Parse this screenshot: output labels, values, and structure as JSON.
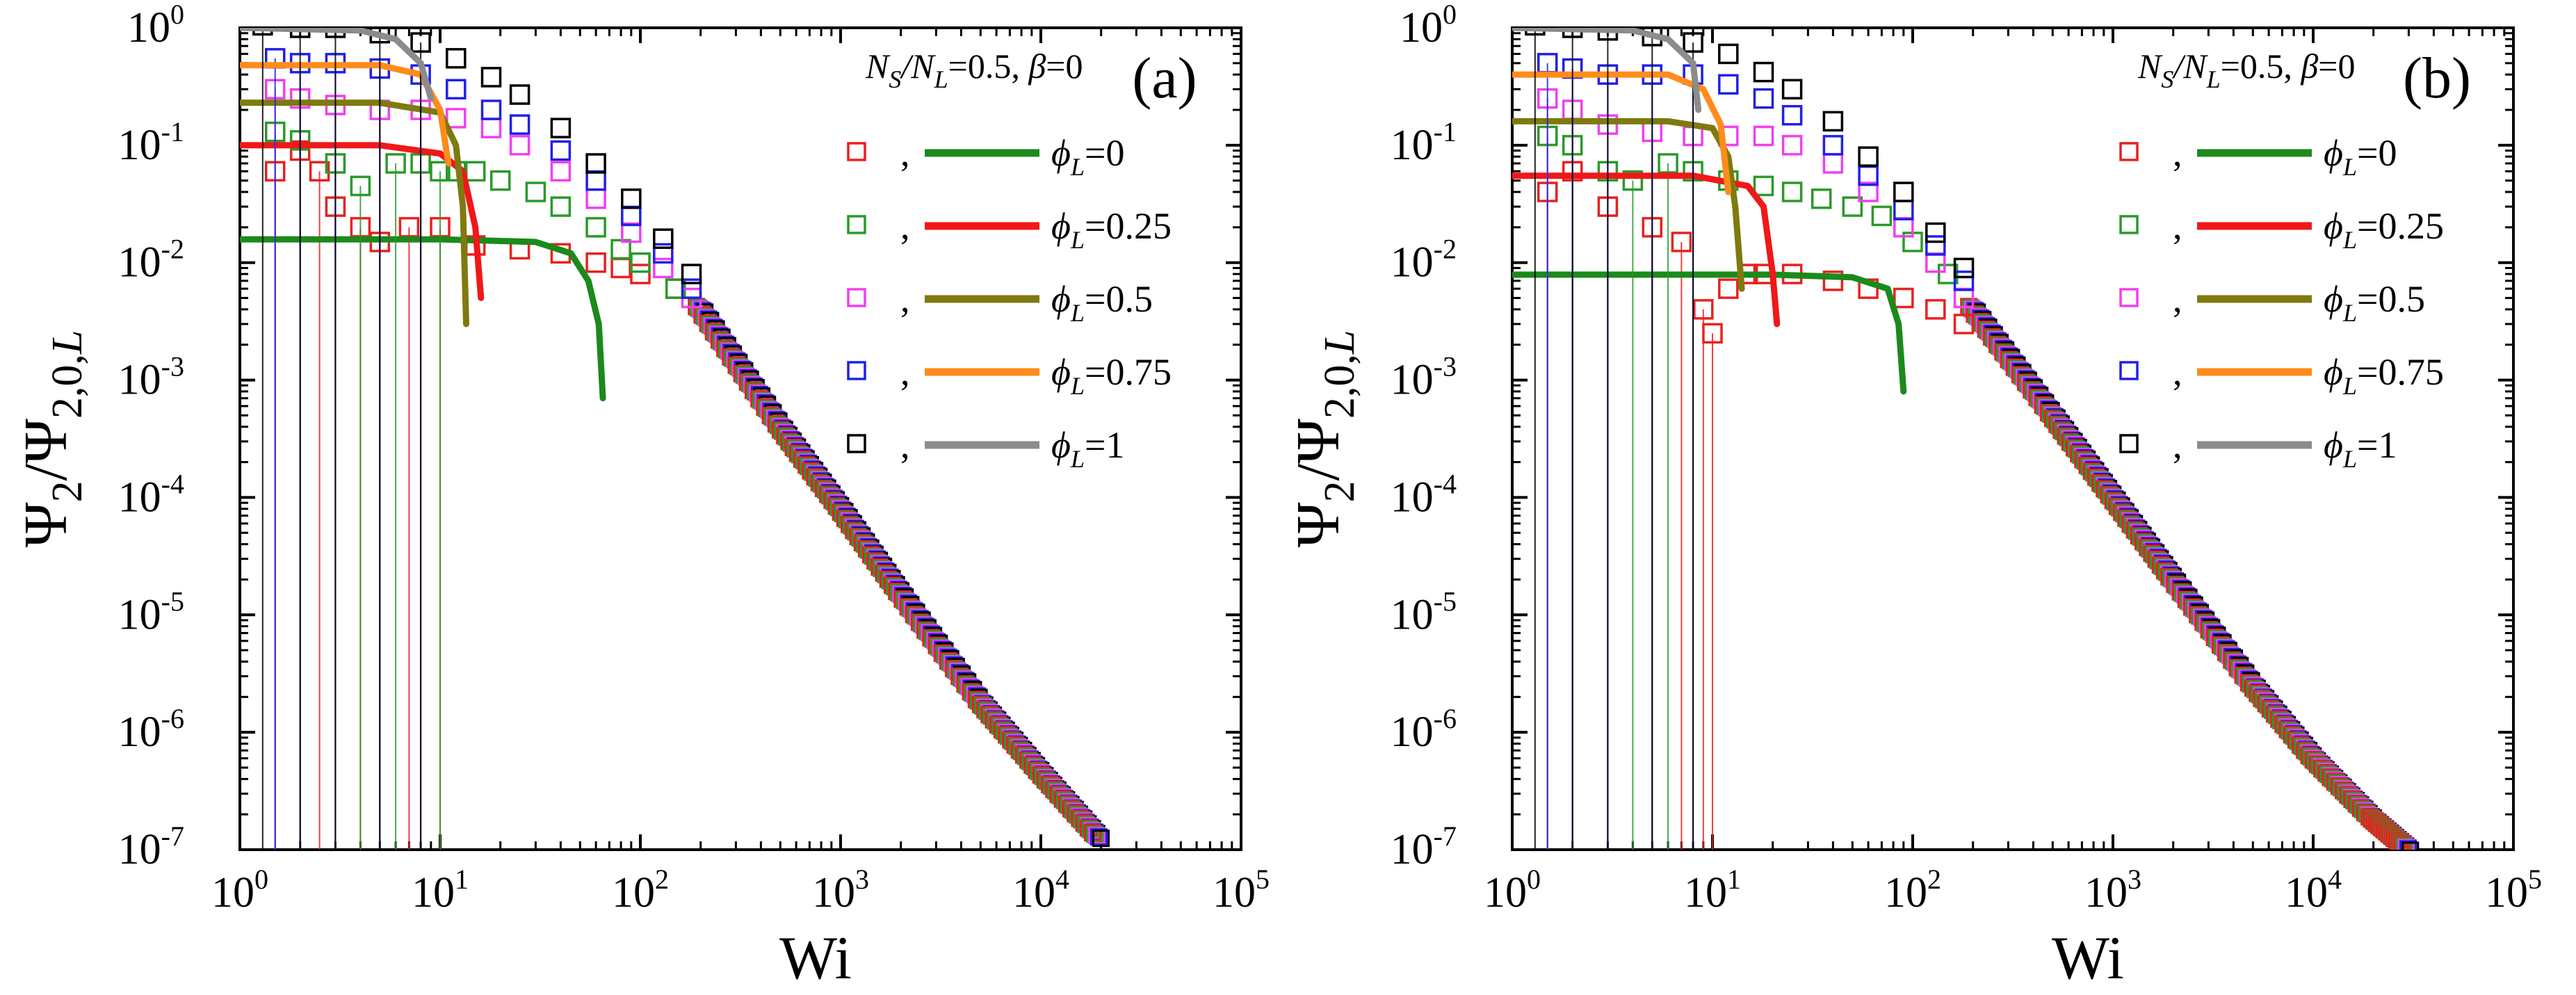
{
  "chart_data": [
    {
      "panel": "(a)",
      "type": "scatter",
      "xlabel": "Wi",
      "ylabel": "Ψ2/Ψ2,0,L",
      "ylabel_parts": {
        "main": "Ψ",
        "sub1": "2",
        "sep": "/Ψ",
        "sub2": "2,0,",
        "sub2_italic": "L"
      },
      "xscale": "log",
      "yscale": "log",
      "xlim": [
        1,
        100000
      ],
      "ylim": [
        1e-07,
        1
      ],
      "x_ticks": [
        "10^0",
        "10^1",
        "10^2",
        "10^3",
        "10^4",
        "10^5"
      ],
      "y_ticks": [
        "10^-7",
        "10^-6",
        "10^-5",
        "10^-4",
        "10^-3",
        "10^-2",
        "10^-1",
        "10^0"
      ],
      "annotation": {
        "params": "NS/NL=0.5, β=0",
        "params_parts": [
          "N",
          "S",
          "/N",
          "L",
          "=0.5, ",
          "β",
          "=0"
        ]
      },
      "legend_position": "top-right",
      "legend": [
        {
          "marker_color": "#e8211e",
          "line_color": "#1b8a1b",
          "label": "ϕL=0",
          "symbol": "ϕ",
          "sub": "L",
          "value": "=0"
        },
        {
          "marker_color": "#2a9a2a",
          "line_color": "#f01818",
          "label": "ϕL=0.25",
          "symbol": "ϕ",
          "sub": "L",
          "value": "=0.25"
        },
        {
          "marker_color": "#f040f0",
          "line_color": "#7e7a10",
          "label": "ϕL=0.5",
          "symbol": "ϕ",
          "sub": "L",
          "value": "=0.5"
        },
        {
          "marker_color": "#2020e8",
          "line_color": "#ff8c1a",
          "label": "ϕL=0.75",
          "symbol": "ϕ",
          "sub": "L",
          "value": "=0.75"
        },
        {
          "marker_color": "#000000",
          "line_color": "#8c8c8c",
          "label": "ϕL=1",
          "symbol": "ϕ",
          "sub": "L",
          "value": "=1"
        }
      ],
      "series": [
        {
          "name": "ϕL=0",
          "marker_color": "#e8211e",
          "line_color": "#1b8a1b",
          "points": [
            [
              1.5,
              0.06
            ],
            [
              2,
              0.09
            ],
            [
              2.5,
              0.06
            ],
            [
              3,
              0.03
            ],
            [
              4,
              0.02
            ],
            [
              5,
              0.015
            ],
            [
              7,
              0.02
            ],
            [
              10,
              0.02
            ],
            [
              15,
              0.014
            ],
            [
              25,
              0.013
            ],
            [
              40,
              0.012
            ],
            [
              60,
              0.01
            ],
            [
              80,
              0.009
            ],
            [
              100,
              0.008
            ],
            [
              150,
              0.006
            ]
          ],
          "model_curve": [
            [
              1,
              0.0158
            ],
            [
              10,
              0.0158
            ],
            [
              30,
              0.015
            ],
            [
              45,
              0.012
            ],
            [
              55,
              0.007
            ],
            [
              62,
              0.003
            ],
            [
              65,
              0.0007
            ]
          ]
        },
        {
          "name": "ϕL=0.25",
          "marker_color": "#2a9a2a",
          "line_color": "#f01818",
          "points": [
            [
              1.5,
              0.13
            ],
            [
              2,
              0.11
            ],
            [
              3,
              0.07
            ],
            [
              4,
              0.045
            ],
            [
              6,
              0.07
            ],
            [
              8,
              0.07
            ],
            [
              10,
              0.06
            ],
            [
              12,
              0.06
            ],
            [
              15,
              0.06
            ],
            [
              20,
              0.05
            ],
            [
              30,
              0.04
            ],
            [
              40,
              0.03
            ],
            [
              60,
              0.02
            ],
            [
              80,
              0.013
            ],
            [
              100,
              0.01
            ],
            [
              150,
              0.006
            ]
          ],
          "model_curve": [
            [
              1,
              0.1
            ],
            [
              5,
              0.1
            ],
            [
              10,
              0.085
            ],
            [
              13,
              0.06
            ],
            [
              15,
              0.02
            ],
            [
              16,
              0.005
            ]
          ]
        },
        {
          "name": "ϕL=0.5",
          "marker_color": "#f040f0",
          "line_color": "#7e7a10",
          "points": [
            [
              1.5,
              0.3
            ],
            [
              2,
              0.25
            ],
            [
              3,
              0.22
            ],
            [
              5,
              0.2
            ],
            [
              8,
              0.2
            ],
            [
              12,
              0.17
            ],
            [
              18,
              0.14
            ],
            [
              25,
              0.1
            ],
            [
              40,
              0.06
            ],
            [
              60,
              0.035
            ],
            [
              90,
              0.018
            ],
            [
              130,
              0.009
            ],
            [
              180,
              0.005
            ]
          ],
          "model_curve": [
            [
              1,
              0.23
            ],
            [
              5,
              0.23
            ],
            [
              10,
              0.19
            ],
            [
              12,
              0.1
            ],
            [
              13,
              0.03
            ],
            [
              13.5,
              0.003
            ]
          ]
        },
        {
          "name": "ϕL=0.75",
          "marker_color": "#2020e8",
          "line_color": "#ff8c1a",
          "points": [
            [
              1.5,
              0.55
            ],
            [
              2,
              0.5
            ],
            [
              3,
              0.5
            ],
            [
              5,
              0.45
            ],
            [
              8,
              0.4
            ],
            [
              12,
              0.3
            ],
            [
              18,
              0.2
            ],
            [
              25,
              0.15
            ],
            [
              40,
              0.09
            ],
            [
              60,
              0.05
            ],
            [
              90,
              0.025
            ],
            [
              130,
              0.012
            ],
            [
              180,
              0.006
            ]
          ],
          "model_curve": [
            [
              1,
              0.48
            ],
            [
              5,
              0.48
            ],
            [
              8,
              0.4
            ],
            [
              10,
              0.2
            ],
            [
              11,
              0.07
            ]
          ]
        },
        {
          "name": "ϕL=1",
          "marker_color": "#000000",
          "line_color": "#8c8c8c",
          "points": [
            [
              1.3,
              1.05
            ],
            [
              2,
              1.0
            ],
            [
              3,
              1.0
            ],
            [
              5,
              0.9
            ],
            [
              8,
              0.75
            ],
            [
              12,
              0.55
            ],
            [
              18,
              0.38
            ],
            [
              25,
              0.27
            ],
            [
              40,
              0.14
            ],
            [
              60,
              0.07
            ],
            [
              90,
              0.035
            ],
            [
              130,
              0.016
            ],
            [
              180,
              0.008
            ]
          ],
          "model_curve": [
            [
              1,
              1.0
            ],
            [
              4,
              0.95
            ],
            [
              6,
              0.8
            ],
            [
              8,
              0.5
            ],
            [
              9,
              0.25
            ]
          ]
        }
      ],
      "collapse_curve": [
        [
          200,
          0.004
        ],
        [
          500,
          0.0004
        ],
        [
          1000,
          8e-05
        ],
        [
          2000,
          1.5e-05
        ],
        [
          5000,
          1.8e-06
        ],
        [
          10000,
          4.5e-07
        ],
        [
          20000,
          1.2e-07
        ]
      ]
    },
    {
      "panel": "(b)",
      "type": "scatter",
      "xlabel": "Wi",
      "ylabel": "Ψ2/Ψ2,0,L",
      "ylabel_parts": {
        "main": "Ψ",
        "sub1": "2",
        "sep": "/Ψ",
        "sub2": "2,0,",
        "sub2_italic": "L"
      },
      "xscale": "log",
      "yscale": "log",
      "xlim": [
        1,
        100000
      ],
      "ylim": [
        1e-07,
        1
      ],
      "x_ticks": [
        "10^0",
        "10^1",
        "10^2",
        "10^3",
        "10^4",
        "10^5"
      ],
      "y_ticks": [
        "10^-7",
        "10^-6",
        "10^-5",
        "10^-4",
        "10^-3",
        "10^-2",
        "10^-1",
        "10^0"
      ],
      "annotation": {
        "params": "NS/NL=0.5, β=0",
        "params_parts": [
          "N",
          "S",
          "/N",
          "L",
          "=0.5, ",
          "β",
          "=0"
        ]
      },
      "legend_position": "top-right",
      "legend": [
        {
          "marker_color": "#e8211e",
          "line_color": "#1b8a1b",
          "label": "ϕL=0",
          "symbol": "ϕ",
          "sub": "L",
          "value": "=0"
        },
        {
          "marker_color": "#2a9a2a",
          "line_color": "#f01818",
          "label": "ϕL=0.25",
          "symbol": "ϕ",
          "sub": "L",
          "value": "=0.25"
        },
        {
          "marker_color": "#f040f0",
          "line_color": "#7e7a10",
          "label": "ϕL=0.5",
          "symbol": "ϕ",
          "sub": "L",
          "value": "=0.5"
        },
        {
          "marker_color": "#2020e8",
          "line_color": "#ff8c1a",
          "label": "ϕL=0.75",
          "symbol": "ϕ",
          "sub": "L",
          "value": "=0.75"
        },
        {
          "marker_color": "#000000",
          "line_color": "#8c8c8c",
          "label": "ϕL=1",
          "symbol": "ϕ",
          "sub": "L",
          "value": "=1"
        }
      ],
      "series": [
        {
          "name": "ϕL=0",
          "marker_color": "#e8211e",
          "line_color": "#1b8a1b",
          "points": [
            [
              1.5,
              0.04
            ],
            [
              2,
              0.06
            ],
            [
              3,
              0.03
            ],
            [
              5,
              0.02
            ],
            [
              7,
              0.015
            ],
            [
              9,
              0.004
            ],
            [
              10,
              0.0025
            ],
            [
              12,
              0.006
            ],
            [
              15,
              0.008
            ],
            [
              18,
              0.008
            ],
            [
              25,
              0.008
            ],
            [
              40,
              0.007
            ],
            [
              60,
              0.006
            ],
            [
              90,
              0.005
            ],
            [
              130,
              0.004
            ],
            [
              180,
              0.003
            ]
          ],
          "model_curve": [
            [
              1,
              0.0079
            ],
            [
              20,
              0.0079
            ],
            [
              50,
              0.0075
            ],
            [
              75,
              0.006
            ],
            [
              85,
              0.003
            ],
            [
              90,
              0.0008
            ]
          ]
        },
        {
          "name": "ϕL=0.25",
          "marker_color": "#2a9a2a",
          "line_color": "#f01818",
          "points": [
            [
              1.5,
              0.12
            ],
            [
              2,
              0.1
            ],
            [
              3,
              0.06
            ],
            [
              4,
              0.05
            ],
            [
              6,
              0.07
            ],
            [
              8,
              0.06
            ],
            [
              12,
              0.05
            ],
            [
              18,
              0.045
            ],
            [
              25,
              0.04
            ],
            [
              35,
              0.035
            ],
            [
              50,
              0.03
            ],
            [
              70,
              0.025
            ],
            [
              100,
              0.015
            ],
            [
              150,
              0.008
            ]
          ],
          "model_curve": [
            [
              1,
              0.055
            ],
            [
              8,
              0.055
            ],
            [
              15,
              0.045
            ],
            [
              18,
              0.03
            ],
            [
              20,
              0.008
            ],
            [
              21,
              0.003
            ]
          ]
        },
        {
          "name": "ϕL=0.5",
          "marker_color": "#f040f0",
          "line_color": "#7e7a10",
          "points": [
            [
              1.5,
              0.25
            ],
            [
              2,
              0.2
            ],
            [
              3,
              0.15
            ],
            [
              5,
              0.13
            ],
            [
              8,
              0.12
            ],
            [
              12,
              0.12
            ],
            [
              18,
              0.12
            ],
            [
              25,
              0.1
            ],
            [
              40,
              0.07
            ],
            [
              60,
              0.04
            ],
            [
              90,
              0.02
            ],
            [
              130,
              0.01
            ],
            [
              180,
              0.005
            ]
          ],
          "model_curve": [
            [
              1,
              0.16
            ],
            [
              6,
              0.16
            ],
            [
              10,
              0.14
            ],
            [
              12,
              0.08
            ],
            [
              13,
              0.03
            ],
            [
              14,
              0.006
            ]
          ]
        },
        {
          "name": "ϕL=0.75",
          "marker_color": "#2020e8",
          "line_color": "#ff8c1a",
          "points": [
            [
              1.5,
              0.5
            ],
            [
              2,
              0.45
            ],
            [
              3,
              0.4
            ],
            [
              5,
              0.4
            ],
            [
              8,
              0.4
            ],
            [
              12,
              0.33
            ],
            [
              18,
              0.25
            ],
            [
              25,
              0.18
            ],
            [
              40,
              0.1
            ],
            [
              60,
              0.055
            ],
            [
              90,
              0.028
            ],
            [
              130,
              0.014
            ],
            [
              180,
              0.007
            ]
          ],
          "model_curve": [
            [
              1,
              0.4
            ],
            [
              6,
              0.4
            ],
            [
              9,
              0.3
            ],
            [
              11,
              0.15
            ],
            [
              12,
              0.04
            ]
          ]
        },
        {
          "name": "ϕL=1",
          "marker_color": "#000000",
          "line_color": "#8c8c8c",
          "points": [
            [
              1.3,
              1.05
            ],
            [
              2,
              1.0
            ],
            [
              3,
              0.95
            ],
            [
              5,
              0.85
            ],
            [
              8,
              0.75
            ],
            [
              12,
              0.6
            ],
            [
              18,
              0.42
            ],
            [
              25,
              0.3
            ],
            [
              40,
              0.16
            ],
            [
              60,
              0.08
            ],
            [
              90,
              0.04
            ],
            [
              130,
              0.018
            ],
            [
              180,
              0.009
            ]
          ],
          "model_curve": [
            [
              1,
              1.0
            ],
            [
              4,
              0.95
            ],
            [
              6,
              0.8
            ],
            [
              8,
              0.5
            ],
            [
              8.5,
              0.2
            ]
          ]
        }
      ],
      "collapse_curve": [
        [
          200,
          0.004
        ],
        [
          500,
          0.0005
        ],
        [
          1000,
          0.0001
        ],
        [
          2000,
          2e-05
        ],
        [
          5000,
          2.5e-06
        ],
        [
          10000,
          6e-07
        ],
        [
          20000,
          1.8e-07
        ],
        [
          30000,
          1e-07
        ]
      ]
    }
  ]
}
